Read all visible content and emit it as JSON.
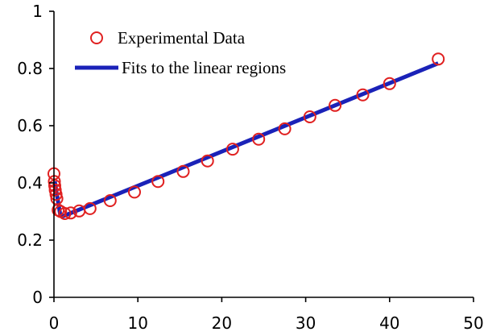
{
  "chart_data": {
    "type": "scatter",
    "title": "",
    "xlabel": "",
    "ylabel": "",
    "xlim": [
      0,
      50
    ],
    "ylim": [
      0,
      1
    ],
    "xticks": [
      0,
      10,
      20,
      30,
      40,
      50
    ],
    "yticks": [
      0,
      0.2,
      0.4,
      0.6,
      0.8,
      1
    ],
    "x_tick_labels": [
      "0",
      "10",
      "20",
      "30",
      "40",
      "50"
    ],
    "y_tick_labels": [
      "0",
      "0.2",
      "0.4",
      "0.6",
      "0.8",
      "1"
    ],
    "grid": false,
    "legend_position": "top-left",
    "series": [
      {
        "name": "Experimental Data",
        "kind": "markers",
        "marker": "open-circle",
        "color": "#e02020",
        "x": [
          0.0,
          0.05,
          0.1,
          0.15,
          0.25,
          0.35,
          0.5,
          0.8,
          1.3,
          2.0,
          3.0,
          4.3,
          6.7,
          9.6,
          12.4,
          15.4,
          18.3,
          21.3,
          24.4,
          27.5,
          30.5,
          33.5,
          36.8,
          40.0,
          45.8
        ],
        "y": [
          0.432,
          0.405,
          0.39,
          0.375,
          0.36,
          0.345,
          0.305,
          0.3,
          0.293,
          0.295,
          0.302,
          0.31,
          0.338,
          0.368,
          0.405,
          0.44,
          0.477,
          0.518,
          0.553,
          0.589,
          0.631,
          0.671,
          0.708,
          0.747,
          0.833
        ]
      },
      {
        "name": "Fits to the linear regions",
        "kind": "line",
        "color": "#1a22b8",
        "segments": [
          {
            "x": [
              0.1,
              0.8
            ],
            "y": [
              0.405,
              0.28
            ]
          },
          {
            "x": [
              0.8,
              45.8
            ],
            "y": [
              0.28,
              0.818
            ]
          }
        ]
      }
    ]
  }
}
